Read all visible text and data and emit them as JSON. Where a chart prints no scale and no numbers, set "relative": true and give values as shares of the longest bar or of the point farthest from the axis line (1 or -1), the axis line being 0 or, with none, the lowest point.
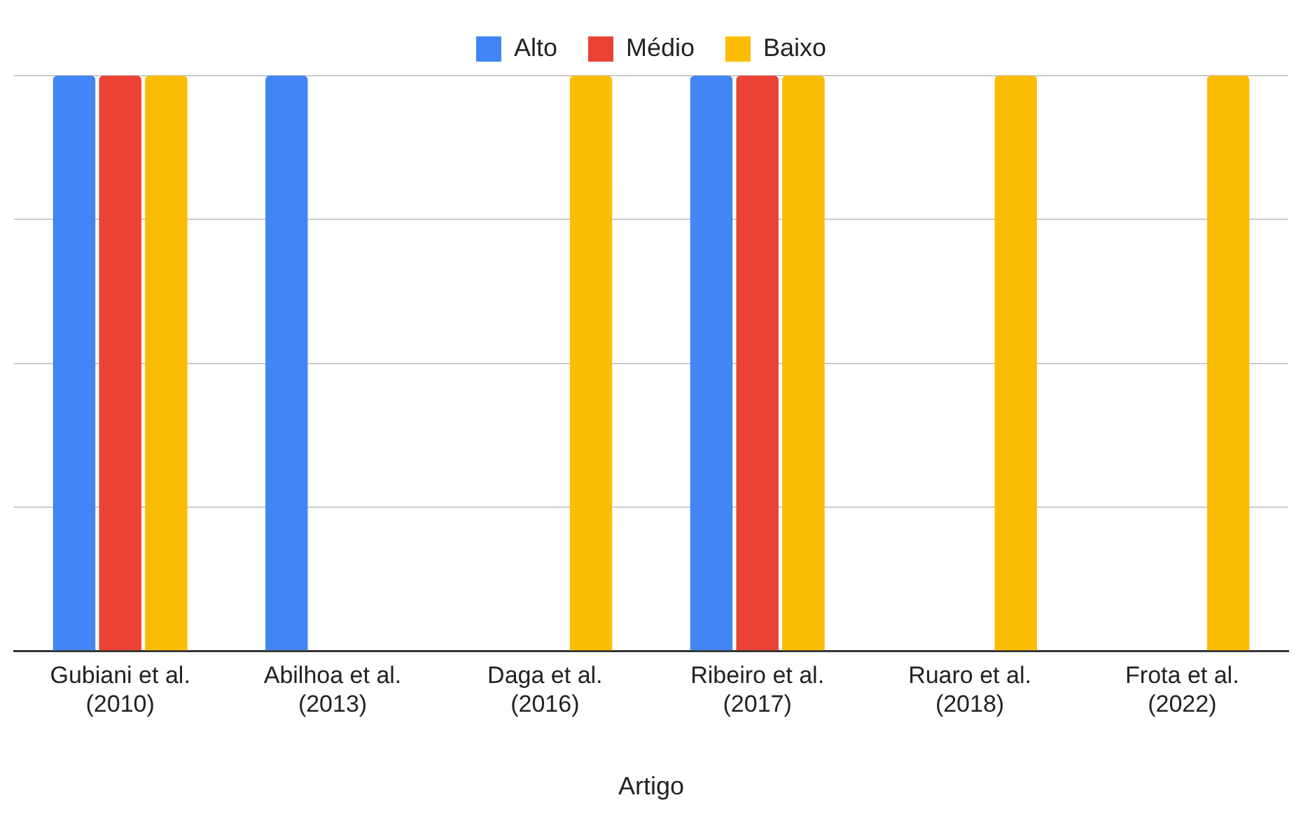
{
  "chart_data": {
    "type": "bar",
    "xlabel": "Artigo",
    "relative": true,
    "grid": "y",
    "legend": "top",
    "categories": [
      "Gubiani et al. (2010)",
      "Abilhoa et al. (2013)",
      "Daga et al. (2016)",
      "Ribeiro et al. (2017)",
      "Ruaro et al. (2018)",
      "Frota et al. (2022)"
    ],
    "series": [
      {
        "name": "Alto",
        "color": "#4285f4",
        "values": [
          1,
          1,
          0,
          1,
          0,
          0
        ]
      },
      {
        "name": "Médio",
        "color": "#ea4335",
        "values": [
          1,
          0,
          0,
          1,
          0,
          0
        ]
      },
      {
        "name": "Baixo",
        "color": "#fbbc04",
        "values": [
          1,
          0,
          1,
          1,
          1,
          1
        ]
      }
    ]
  }
}
